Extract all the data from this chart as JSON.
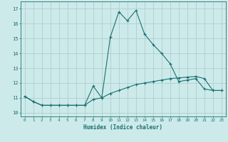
{
  "xlabel": "Humidex (Indice chaleur)",
  "background_color": "#cdeaea",
  "grid_color": "#aecece",
  "line_color": "#1a7070",
  "xlim": [
    -0.5,
    23.5
  ],
  "ylim": [
    9.75,
    17.5
  ],
  "yticks": [
    10,
    11,
    12,
    13,
    14,
    15,
    16,
    17
  ],
  "xticks": [
    0,
    1,
    2,
    3,
    4,
    5,
    6,
    7,
    8,
    9,
    10,
    11,
    12,
    13,
    14,
    15,
    16,
    17,
    18,
    19,
    20,
    21,
    22,
    23
  ],
  "series1_x": [
    0,
    1,
    2,
    3,
    4,
    5,
    6,
    7,
    8,
    9,
    10,
    11,
    12,
    13,
    14,
    15,
    16,
    17,
    18,
    19,
    20,
    21,
    22,
    23
  ],
  "series1_y": [
    11.1,
    10.75,
    10.5,
    10.5,
    10.5,
    10.5,
    10.5,
    10.5,
    10.9,
    11.0,
    11.3,
    11.5,
    11.7,
    11.9,
    12.0,
    12.1,
    12.2,
    12.3,
    12.35,
    12.4,
    12.45,
    12.3,
    11.5,
    11.5
  ],
  "series2_x": [
    0,
    1,
    2,
    3,
    4,
    5,
    6,
    7,
    8,
    9,
    10,
    11,
    12,
    13,
    14,
    15,
    16,
    17,
    18,
    19,
    20,
    21,
    22,
    23
  ],
  "series2_y": [
    11.1,
    10.75,
    10.5,
    10.5,
    10.5,
    10.5,
    10.5,
    10.5,
    11.8,
    11.0,
    15.1,
    16.8,
    16.2,
    16.9,
    15.3,
    14.6,
    14.0,
    13.3,
    12.1,
    12.2,
    12.3,
    11.6,
    11.5,
    11.5
  ]
}
